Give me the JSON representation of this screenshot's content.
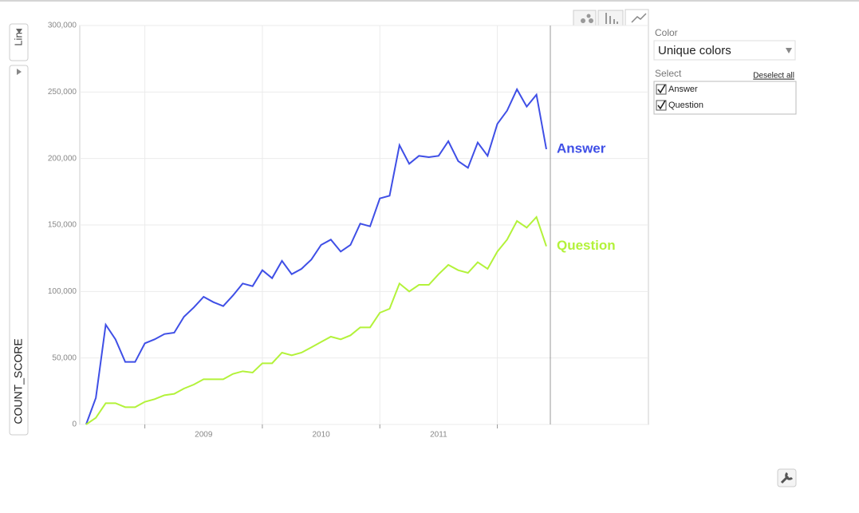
{
  "chart_data": {
    "type": "line",
    "ylabel": "COUNT_SCORE",
    "x": [
      2008.5,
      2008.583,
      2008.667,
      2008.75,
      2008.833,
      2008.917,
      2009,
      2009.083,
      2009.167,
      2009.25,
      2009.333,
      2009.417,
      2009.5,
      2009.583,
      2009.667,
      2009.75,
      2009.833,
      2009.917,
      2010,
      2010.083,
      2010.167,
      2010.25,
      2010.333,
      2010.417,
      2010.5,
      2010.583,
      2010.667,
      2010.75,
      2010.833,
      2010.917,
      2011,
      2011.083,
      2011.167,
      2011.25,
      2011.333,
      2011.417,
      2011.5,
      2011.583,
      2011.667,
      2011.75,
      2011.833,
      2011.917,
      2012,
      2012.083,
      2012.167,
      2012.25,
      2012.333,
      2012.417
    ],
    "series": [
      {
        "name": "Answer",
        "color": "#3f4fe6",
        "values": [
          0,
          20000,
          75000,
          64000,
          47000,
          47000,
          61000,
          64000,
          68000,
          69000,
          81000,
          88000,
          96000,
          92000,
          89000,
          97000,
          106000,
          104000,
          116000,
          110000,
          123000,
          113000,
          117000,
          124000,
          135000,
          139000,
          130000,
          135000,
          151000,
          149000,
          170000,
          172000,
          210000,
          196000,
          202000,
          201000,
          202000,
          213000,
          198000,
          193000,
          212000,
          202000,
          226000,
          236000,
          252000,
          239000,
          248000,
          207000
        ]
      },
      {
        "name": "Question",
        "color": "#b3f23a",
        "values": [
          0,
          5000,
          16000,
          16000,
          13000,
          13000,
          17000,
          19000,
          22000,
          23000,
          27000,
          30000,
          34000,
          34000,
          34000,
          38000,
          40000,
          39000,
          46000,
          46000,
          54000,
          52000,
          54000,
          58000,
          62000,
          66000,
          64000,
          67000,
          73000,
          73000,
          84000,
          87000,
          106000,
          100000,
          105000,
          105000,
          113000,
          120000,
          116000,
          114000,
          122000,
          117000,
          130000,
          139000,
          153000,
          148000,
          156000,
          134000
        ]
      }
    ],
    "xlim": [
      2008.446,
      2013.286
    ],
    "xticks": [
      2009,
      2010,
      2011,
      2012
    ],
    "ylim": [
      0,
      300000
    ],
    "yticks": [
      0,
      {
        "value": 50000,
        "label": "50,000"
      },
      {
        "value": 100000,
        "label": "100,000"
      },
      {
        "value": 150000,
        "label": "150,000"
      },
      {
        "value": 200000,
        "label": "200,000"
      },
      {
        "value": 250000,
        "label": "250,000"
      },
      {
        "value": 300000,
        "label": "300,000"
      }
    ],
    "grid": true
  },
  "controls": {
    "scale": "Lin",
    "color_label": "Color",
    "color_value": "Unique colors",
    "select_label": "Select",
    "deselect": "Deselect all"
  }
}
